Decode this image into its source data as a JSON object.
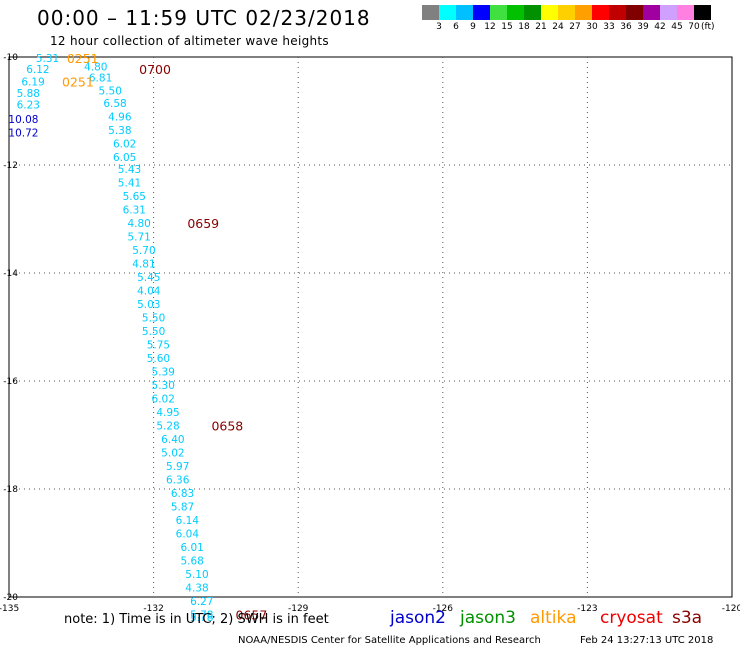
{
  "header": {
    "title": "00:00 – 11:59 UTC 02/23/2018",
    "subtitle": "12 hour collection of altimeter wave heights"
  },
  "color_scale": {
    "labels": [
      "3",
      "6",
      "9",
      "12",
      "15",
      "18",
      "21",
      "24",
      "27",
      "30",
      "33",
      "36",
      "39",
      "42",
      "45",
      "70"
    ],
    "unit": "(ft)",
    "colors": [
      "#808080",
      "#00ffff",
      "#00c0ff",
      "#0000ff",
      "#40e040",
      "#00c000",
      "#009000",
      "#ffff00",
      "#ffd000",
      "#ffa000",
      "#ff0000",
      "#c00000",
      "#800000",
      "#a000a0",
      "#d0a0ff",
      "#ff80e0",
      "#000000"
    ]
  },
  "footer": {
    "note": "note: 1) Time is in UTC; 2) SWH is in feet",
    "satellites": [
      {
        "name": "jason2",
        "color": "#0000cc"
      },
      {
        "name": "jason3",
        "color": "#009000"
      },
      {
        "name": "altika",
        "color": "#ff9900"
      },
      {
        "name": "cryosat",
        "color": "#ee0000"
      },
      {
        "name": "s3a",
        "color": "#880000"
      }
    ],
    "credit": "NOAA/NESDIS Center for Satellite Applications and Research",
    "timestamp": "Feb 24 13:27:13 UTC 2018"
  },
  "chart_data": {
    "type": "scatter",
    "title": "00:00 – 11:59 UTC 02/23/2018",
    "subtitle": "12 hour collection of altimeter wave heights",
    "xlim": [
      -135,
      -120
    ],
    "ylim": [
      -20,
      -10
    ],
    "x_ticks": [
      "-135",
      "-132",
      "-129",
      "-126",
      "-123",
      "-120"
    ],
    "y_ticks": [
      "-10",
      "-12",
      "-14",
      "-16",
      "-18",
      "-20"
    ],
    "grid": true,
    "points": [
      {
        "lon": -134.2,
        "lat": -10.02,
        "swh": "5.31",
        "color": "#00ccff"
      },
      {
        "lon": -133.2,
        "lat": -10.18,
        "swh": "4.80",
        "color": "#00ccff"
      },
      {
        "lon": -134.4,
        "lat": -10.22,
        "swh": "6.12",
        "color": "#00ccff"
      },
      {
        "lon": -133.1,
        "lat": -10.38,
        "swh": "6.81",
        "color": "#00ccff"
      },
      {
        "lon": -134.5,
        "lat": -10.45,
        "swh": "6.19",
        "color": "#00ccff"
      },
      {
        "lon": -132.9,
        "lat": -10.62,
        "swh": "5.50",
        "color": "#00ccff"
      },
      {
        "lon": -134.6,
        "lat": -10.67,
        "swh": "5.88",
        "color": "#00ccff"
      },
      {
        "lon": -132.8,
        "lat": -10.85,
        "swh": "6.58",
        "color": "#00ccff"
      },
      {
        "lon": -134.6,
        "lat": -10.88,
        "swh": "6.23",
        "color": "#00ccff"
      },
      {
        "lon": -132.7,
        "lat": -11.1,
        "swh": "4.96",
        "color": "#00ccff"
      },
      {
        "lon": -134.7,
        "lat": -11.15,
        "swh": "10.08",
        "color": "#0000cc"
      },
      {
        "lon": -132.7,
        "lat": -11.35,
        "swh": "5.38",
        "color": "#00ccff"
      },
      {
        "lon": -134.7,
        "lat": -11.4,
        "swh": "10.72",
        "color": "#0000cc"
      },
      {
        "lon": -132.6,
        "lat": -11.6,
        "swh": "6.02",
        "color": "#00ccff"
      },
      {
        "lon": -132.6,
        "lat": -11.85,
        "swh": "6.05",
        "color": "#00ccff"
      },
      {
        "lon": -132.5,
        "lat": -12.07,
        "swh": "5.43",
        "color": "#00ccff"
      },
      {
        "lon": -132.5,
        "lat": -12.32,
        "swh": "5.41",
        "color": "#00ccff"
      },
      {
        "lon": -132.4,
        "lat": -12.57,
        "swh": "5.65",
        "color": "#00ccff"
      },
      {
        "lon": -132.4,
        "lat": -12.82,
        "swh": "6.31",
        "color": "#00ccff"
      },
      {
        "lon": -132.3,
        "lat": -13.07,
        "swh": "4.80",
        "color": "#00ccff"
      },
      {
        "lon": -132.3,
        "lat": -13.32,
        "swh": "5.71",
        "color": "#00ccff"
      },
      {
        "lon": -132.2,
        "lat": -13.57,
        "swh": "5.70",
        "color": "#00ccff"
      },
      {
        "lon": -132.2,
        "lat": -13.82,
        "swh": "4.81",
        "color": "#00ccff"
      },
      {
        "lon": -132.1,
        "lat": -14.07,
        "swh": "5.45",
        "color": "#00ccff"
      },
      {
        "lon": -132.1,
        "lat": -14.32,
        "swh": "4.04",
        "color": "#00ccff"
      },
      {
        "lon": -132.1,
        "lat": -14.57,
        "swh": "5.03",
        "color": "#00ccff"
      },
      {
        "lon": -132.0,
        "lat": -14.82,
        "swh": "5.50",
        "color": "#00ccff"
      },
      {
        "lon": -132.0,
        "lat": -15.07,
        "swh": "5.50",
        "color": "#00ccff"
      },
      {
        "lon": -131.9,
        "lat": -15.32,
        "swh": "5.75",
        "color": "#00ccff"
      },
      {
        "lon": -131.9,
        "lat": -15.57,
        "swh": "5.60",
        "color": "#00ccff"
      },
      {
        "lon": -131.8,
        "lat": -15.82,
        "swh": "5.39",
        "color": "#00ccff"
      },
      {
        "lon": -131.8,
        "lat": -16.07,
        "swh": "5.30",
        "color": "#00ccff"
      },
      {
        "lon": -131.8,
        "lat": -16.32,
        "swh": "6.02",
        "color": "#00ccff"
      },
      {
        "lon": -131.7,
        "lat": -16.57,
        "swh": "4.95",
        "color": "#00ccff"
      },
      {
        "lon": -131.7,
        "lat": -16.82,
        "swh": "5.28",
        "color": "#00ccff"
      },
      {
        "lon": -131.6,
        "lat": -17.07,
        "swh": "6.40",
        "color": "#00ccff"
      },
      {
        "lon": -131.6,
        "lat": -17.32,
        "swh": "5.02",
        "color": "#00ccff"
      },
      {
        "lon": -131.5,
        "lat": -17.57,
        "swh": "5.97",
        "color": "#00ccff"
      },
      {
        "lon": -131.5,
        "lat": -17.82,
        "swh": "6.36",
        "color": "#00ccff"
      },
      {
        "lon": -131.4,
        "lat": -18.07,
        "swh": "6.83",
        "color": "#00ccff"
      },
      {
        "lon": -131.4,
        "lat": -18.32,
        "swh": "5.87",
        "color": "#00ccff"
      },
      {
        "lon": -131.3,
        "lat": -18.57,
        "swh": "6.14",
        "color": "#00ccff"
      },
      {
        "lon": -131.3,
        "lat": -18.82,
        "swh": "6.04",
        "color": "#00ccff"
      },
      {
        "lon": -131.2,
        "lat": -19.07,
        "swh": "6.01",
        "color": "#00ccff"
      },
      {
        "lon": -131.2,
        "lat": -19.32,
        "swh": "5.68",
        "color": "#00ccff"
      },
      {
        "lon": -131.1,
        "lat": -19.57,
        "swh": "5.10",
        "color": "#00ccff"
      },
      {
        "lon": -131.1,
        "lat": -19.82,
        "swh": "4.38",
        "color": "#00ccff"
      },
      {
        "lon": -131.0,
        "lat": -20.07,
        "swh": "6.27",
        "color": "#00ccff"
      },
      {
        "lon": -131.0,
        "lat": -20.32,
        "swh": "5.78",
        "color": "#00ccff"
      },
      {
        "lon": -131.0,
        "lat": -20.37,
        "swh": "5.78",
        "color": "#00ccff"
      }
    ],
    "time_labels": [
      {
        "lon": -133.8,
        "lat": -10.02,
        "text": "0251",
        "color": "#ff9900"
      },
      {
        "lon": -132.3,
        "lat": -10.22,
        "text": "0700",
        "color": "#880000"
      },
      {
        "lon": -133.9,
        "lat": -10.45,
        "text": "0251",
        "color": "#ff9900"
      },
      {
        "lon": -131.3,
        "lat": -13.07,
        "text": "0659",
        "color": "#880000"
      },
      {
        "lon": -130.8,
        "lat": -16.82,
        "text": "0658",
        "color": "#880000"
      },
      {
        "lon": -130.3,
        "lat": -20.32,
        "text": "0657",
        "color": "#880000"
      }
    ]
  }
}
